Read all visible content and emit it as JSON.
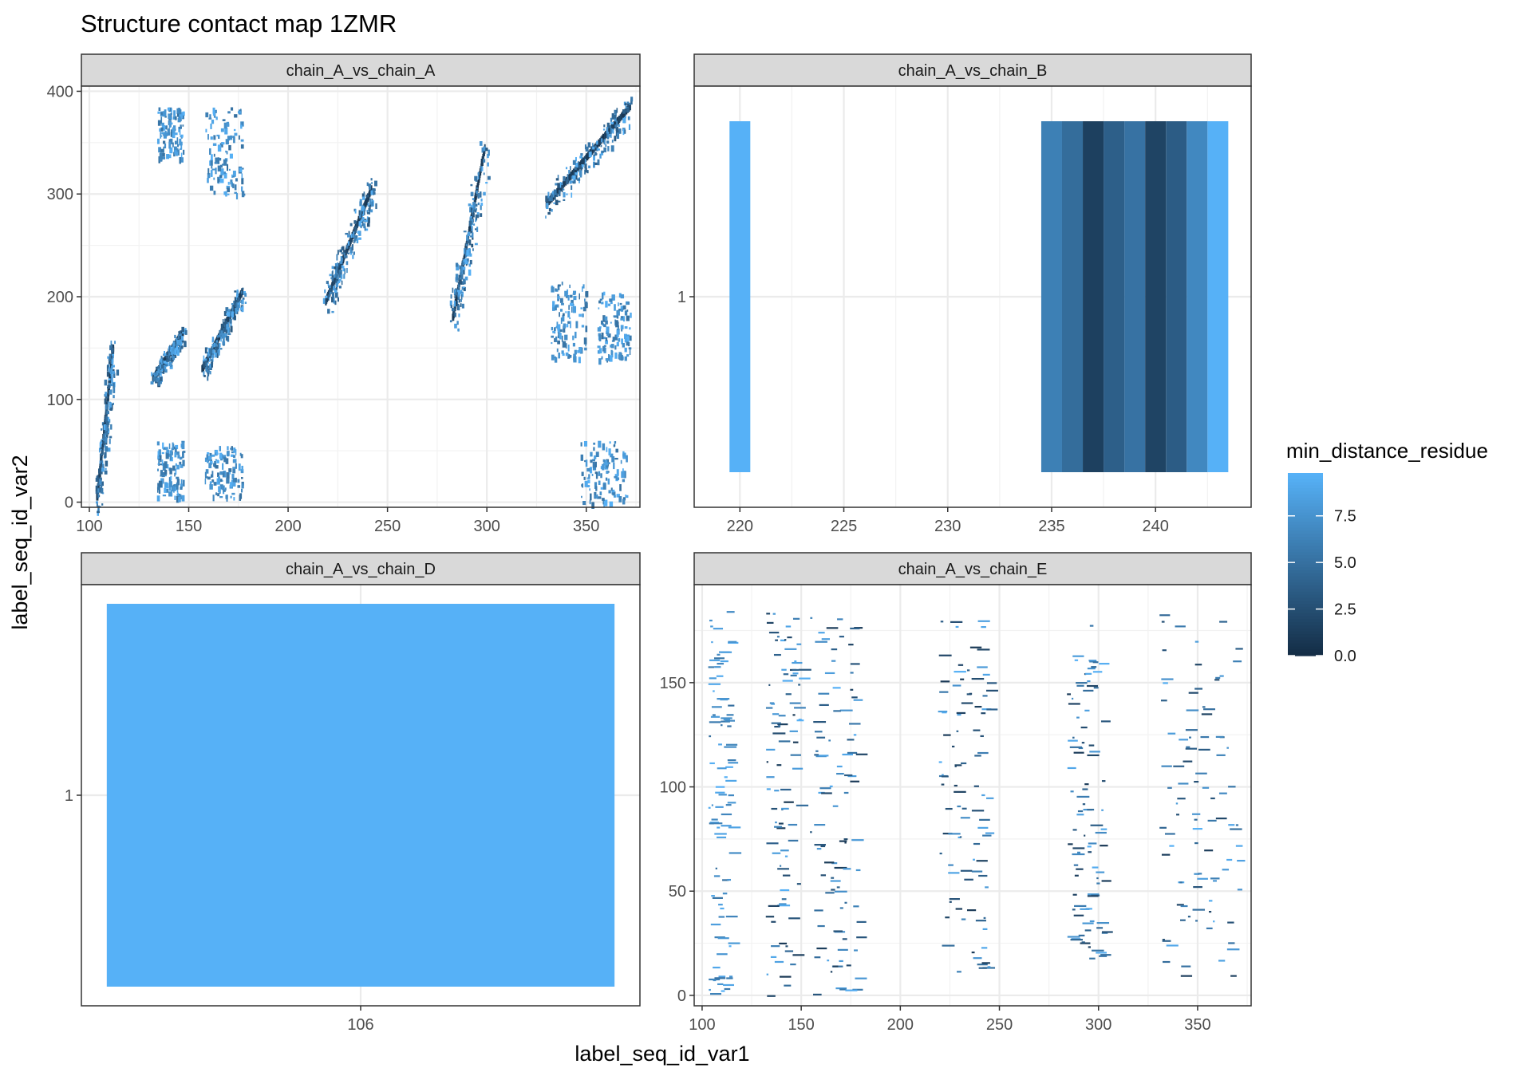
{
  "figure": {
    "title": "Structure contact map 1ZMR",
    "x_axis_title": "label_seq_id_var1",
    "y_axis_title": "label_seq_id_var2"
  },
  "legend": {
    "title": "min_distance_residue",
    "ticks": [
      "7.5",
      "5.0",
      "2.5",
      "0.0"
    ],
    "tick_values": [
      7.5,
      5.0,
      2.5,
      0.0
    ],
    "range": [
      0,
      9.8
    ],
    "color_low": "#132B43",
    "color_high": "#56B1F7"
  },
  "chart_data": [
    {
      "type": "heatmap",
      "facet": "chain_A_vs_chain_A",
      "xlim": [
        96,
        377
      ],
      "ylim": [
        -5,
        405
      ],
      "x_ticks": [
        "100",
        "150",
        "200",
        "250",
        "300",
        "350"
      ],
      "y_ticks": [
        "0",
        "100",
        "200",
        "300",
        "400"
      ],
      "clusters": [
        {
          "x": [
            104,
            112
          ],
          "y": [
            5,
            150
          ],
          "dist": "diag"
        },
        {
          "x": [
            132,
            147
          ],
          "y": [
            120,
            165
          ],
          "dist": "diag"
        },
        {
          "x": [
            157,
            177
          ],
          "y": [
            130,
            205
          ],
          "dist": "diag"
        },
        {
          "x": [
            219,
            242
          ],
          "y": [
            195,
            305
          ],
          "dist": "diag"
        },
        {
          "x": [
            283,
            299
          ],
          "y": [
            180,
            345
          ],
          "dist": "diag"
        },
        {
          "x": [
            330,
            372
          ],
          "y": [
            290,
            385
          ],
          "dist": "diag"
        },
        {
          "x": [
            134,
            147
          ],
          "y": [
            5,
            60
          ],
          "dist": "far"
        },
        {
          "x": [
            134,
            147
          ],
          "y": [
            335,
            385
          ],
          "dist": "far"
        },
        {
          "x": [
            158,
            177
          ],
          "y": [
            5,
            55
          ],
          "dist": "far"
        },
        {
          "x": [
            158,
            177
          ],
          "y": [
            300,
            385
          ],
          "dist": "far"
        },
        {
          "x": [
            332,
            350
          ],
          "y": [
            140,
            215
          ],
          "dist": "far"
        },
        {
          "x": [
            355,
            372
          ],
          "y": [
            140,
            205
          ],
          "dist": "far"
        },
        {
          "x": [
            347,
            370
          ],
          "y": [
            0,
            60
          ],
          "dist": "far"
        }
      ]
    },
    {
      "type": "heatmap",
      "facet": "chain_A_vs_chain_B",
      "xlim": [
        217.8,
        244.6
      ],
      "ylim": [
        0.4,
        1.6
      ],
      "x_ticks": [
        "220",
        "225",
        "230",
        "235",
        "240"
      ],
      "y_ticks": [
        "1"
      ],
      "cells": [
        {
          "x": 220,
          "value": 9.8
        },
        {
          "x": 235,
          "value": 6.2
        },
        {
          "x": 236,
          "value": 4.8
        },
        {
          "x": 237,
          "value": 1.5
        },
        {
          "x": 238,
          "value": 3.8
        },
        {
          "x": 239,
          "value": 5.2
        },
        {
          "x": 240,
          "value": 1.8
        },
        {
          "x": 241,
          "value": 3.6
        },
        {
          "x": 242,
          "value": 6.8
        },
        {
          "x": 243,
          "value": 9.8
        }
      ]
    },
    {
      "type": "heatmap",
      "facet": "chain_A_vs_chain_D",
      "xlim": [
        105.45,
        106.55
      ],
      "ylim": [
        0.45,
        1.55
      ],
      "x_ticks": [
        "106"
      ],
      "y_ticks": [
        "1"
      ],
      "cells": [
        {
          "x": 106,
          "y": 1,
          "value": 9.8
        }
      ]
    },
    {
      "type": "heatmap",
      "facet": "chain_A_vs_chain_E",
      "xlim": [
        96,
        377
      ],
      "ylim": [
        -5,
        197
      ],
      "x_ticks": [
        "100",
        "150",
        "200",
        "250",
        "300",
        "350"
      ],
      "y_ticks": [
        "0",
        "50",
        "100",
        "150"
      ],
      "clusters": [
        {
          "x": [
            103,
            114
          ],
          "y": [
            0,
            185
          ],
          "dist": "far"
        },
        {
          "x": [
            132,
            149
          ],
          "y": [
            0,
            185
          ],
          "dist": "mix"
        },
        {
          "x": [
            154,
            178
          ],
          "y": [
            0,
            182
          ],
          "dist": "mix"
        },
        {
          "x": [
            219,
            244
          ],
          "y": [
            10,
            180
          ],
          "dist": "mix"
        },
        {
          "x": [
            284,
            302
          ],
          "y": [
            15,
            180
          ],
          "dist": "mix"
        },
        {
          "x": [
            330,
            372
          ],
          "y": [
            5,
            185
          ],
          "dist": "mix"
        }
      ]
    }
  ]
}
